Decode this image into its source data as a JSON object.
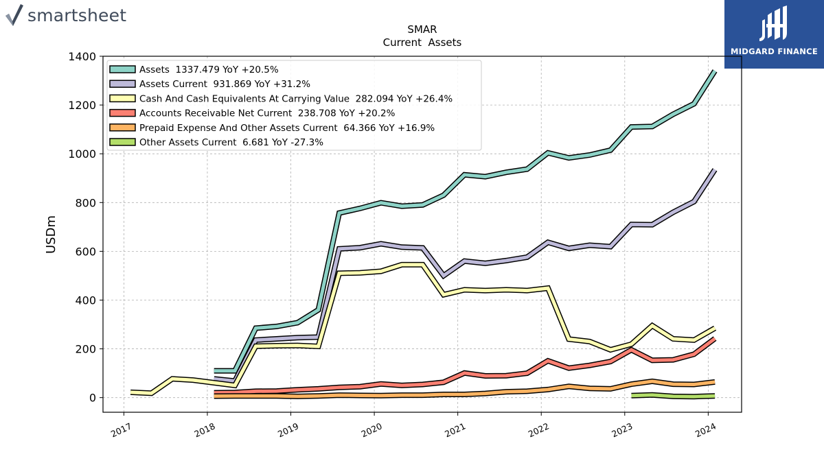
{
  "branding": {
    "app_name": "smartsheet",
    "partner_name": "MIDGARD FINANCE",
    "partner_color": "#2a5298"
  },
  "chart_data": {
    "type": "line",
    "title": "SMAR",
    "subtitle": "Current  Assets",
    "ylabel": "USDm",
    "xlabel": "",
    "ylim": [
      -60,
      1400
    ],
    "xlim": [
      2016.75,
      2024.4
    ],
    "yticks": [
      0,
      200,
      400,
      600,
      800,
      1000,
      1200,
      1400
    ],
    "xticks": [
      "2017",
      "2018",
      "2019",
      "2020",
      "2021",
      "2022",
      "2023",
      "2024"
    ],
    "grid": true,
    "legend_position": "top-left",
    "series": [
      {
        "name": "Assets  1337.479 YoY +20.5%",
        "color": "#8dd3c7",
        "points": [
          [
            2018.08,
            110
          ],
          [
            2018.33,
            110
          ],
          [
            2018.58,
            285
          ],
          [
            2018.83,
            292
          ],
          [
            2019.08,
            307
          ],
          [
            2019.33,
            360
          ],
          [
            2019.58,
            757
          ],
          [
            2019.83,
            776
          ],
          [
            2020.08,
            799
          ],
          [
            2020.33,
            785
          ],
          [
            2020.58,
            790
          ],
          [
            2020.83,
            830
          ],
          [
            2021.08,
            914
          ],
          [
            2021.33,
            906
          ],
          [
            2021.58,
            924
          ],
          [
            2021.83,
            937
          ],
          [
            2022.08,
            1004
          ],
          [
            2022.33,
            983
          ],
          [
            2022.58,
            995
          ],
          [
            2022.83,
            1015
          ],
          [
            2023.08,
            1110
          ],
          [
            2023.33,
            1112
          ],
          [
            2023.58,
            1162
          ],
          [
            2023.83,
            1205
          ],
          [
            2024.08,
            1340
          ]
        ]
      },
      {
        "name": "Assets Current  931.869 YoY +31.2%",
        "color": "#bebada",
        "points": [
          [
            2018.08,
            77
          ],
          [
            2018.33,
            68
          ],
          [
            2018.58,
            236
          ],
          [
            2018.83,
            241
          ],
          [
            2019.08,
            246
          ],
          [
            2019.33,
            248
          ],
          [
            2019.58,
            610
          ],
          [
            2019.83,
            615
          ],
          [
            2020.08,
            631
          ],
          [
            2020.33,
            617
          ],
          [
            2020.58,
            614
          ],
          [
            2020.83,
            500
          ],
          [
            2021.08,
            560
          ],
          [
            2021.33,
            551
          ],
          [
            2021.58,
            562
          ],
          [
            2021.83,
            576
          ],
          [
            2022.08,
            637
          ],
          [
            2022.33,
            612
          ],
          [
            2022.58,
            625
          ],
          [
            2022.83,
            619
          ],
          [
            2023.08,
            710
          ],
          [
            2023.33,
            709
          ],
          [
            2023.58,
            760
          ],
          [
            2023.83,
            804
          ],
          [
            2024.08,
            935
          ]
        ]
      },
      {
        "name": "Cash And Cash Equivalents At Carrying Value  282.094 YoY +26.4%",
        "color": "#ffffb3",
        "points": [
          [
            2017.08,
            22
          ],
          [
            2017.33,
            18
          ],
          [
            2017.58,
            77
          ],
          [
            2017.83,
            72
          ],
          [
            2018.08,
            61
          ],
          [
            2018.33,
            50
          ],
          [
            2018.58,
            211
          ],
          [
            2018.83,
            213
          ],
          [
            2019.08,
            214
          ],
          [
            2019.33,
            210
          ],
          [
            2019.58,
            510
          ],
          [
            2019.83,
            512
          ],
          [
            2020.08,
            518
          ],
          [
            2020.33,
            545
          ],
          [
            2020.58,
            545
          ],
          [
            2020.83,
            422
          ],
          [
            2021.08,
            442
          ],
          [
            2021.33,
            439
          ],
          [
            2021.58,
            442
          ],
          [
            2021.83,
            439
          ],
          [
            2022.08,
            449
          ],
          [
            2022.33,
            240
          ],
          [
            2022.58,
            230
          ],
          [
            2022.83,
            196
          ],
          [
            2023.08,
            219
          ],
          [
            2023.33,
            295
          ],
          [
            2023.58,
            241
          ],
          [
            2023.83,
            236
          ],
          [
            2024.08,
            285
          ]
        ]
      },
      {
        "name": "Accounts Receivable Net Current  238.708 YoY +20.2%",
        "color": "#fb8072",
        "points": [
          [
            2018.08,
            20
          ],
          [
            2018.33,
            21
          ],
          [
            2018.58,
            26
          ],
          [
            2018.83,
            27
          ],
          [
            2019.08,
            32
          ],
          [
            2019.33,
            36
          ],
          [
            2019.58,
            42
          ],
          [
            2019.83,
            45
          ],
          [
            2020.08,
            56
          ],
          [
            2020.33,
            50
          ],
          [
            2020.58,
            54
          ],
          [
            2020.83,
            63
          ],
          [
            2021.08,
            101
          ],
          [
            2021.33,
            89
          ],
          [
            2021.58,
            90
          ],
          [
            2021.83,
            100
          ],
          [
            2022.08,
            151
          ],
          [
            2022.33,
            121
          ],
          [
            2022.58,
            132
          ],
          [
            2022.83,
            148
          ],
          [
            2023.08,
            196
          ],
          [
            2023.33,
            153
          ],
          [
            2023.58,
            155
          ],
          [
            2023.83,
            178
          ],
          [
            2024.08,
            242
          ]
        ]
      },
      {
        "name": "Prepaid Expense And Other Assets Current  64.366 YoY +16.9%",
        "color": "#fdb462",
        "points": [
          [
            2018.08,
            6
          ],
          [
            2018.33,
            7
          ],
          [
            2018.58,
            7
          ],
          [
            2018.83,
            7
          ],
          [
            2019.08,
            5
          ],
          [
            2019.33,
            7
          ],
          [
            2019.58,
            10
          ],
          [
            2019.83,
            9
          ],
          [
            2020.08,
            8
          ],
          [
            2020.33,
            10
          ],
          [
            2020.58,
            10
          ],
          [
            2020.83,
            13
          ],
          [
            2021.08,
            13
          ],
          [
            2021.33,
            17
          ],
          [
            2021.58,
            24
          ],
          [
            2021.83,
            26
          ],
          [
            2022.08,
            33
          ],
          [
            2022.33,
            46
          ],
          [
            2022.58,
            38
          ],
          [
            2022.83,
            36
          ],
          [
            2023.08,
            55
          ],
          [
            2023.33,
            67
          ],
          [
            2023.58,
            55
          ],
          [
            2023.83,
            54
          ],
          [
            2024.08,
            64
          ]
        ]
      },
      {
        "name": "Other Assets Current  6.681 YoY -27.3%",
        "color": "#b3de69",
        "points": [
          [
            2023.08,
            8
          ],
          [
            2023.33,
            11
          ],
          [
            2023.58,
            5
          ],
          [
            2023.83,
            4
          ],
          [
            2024.08,
            7
          ]
        ]
      }
    ]
  }
}
